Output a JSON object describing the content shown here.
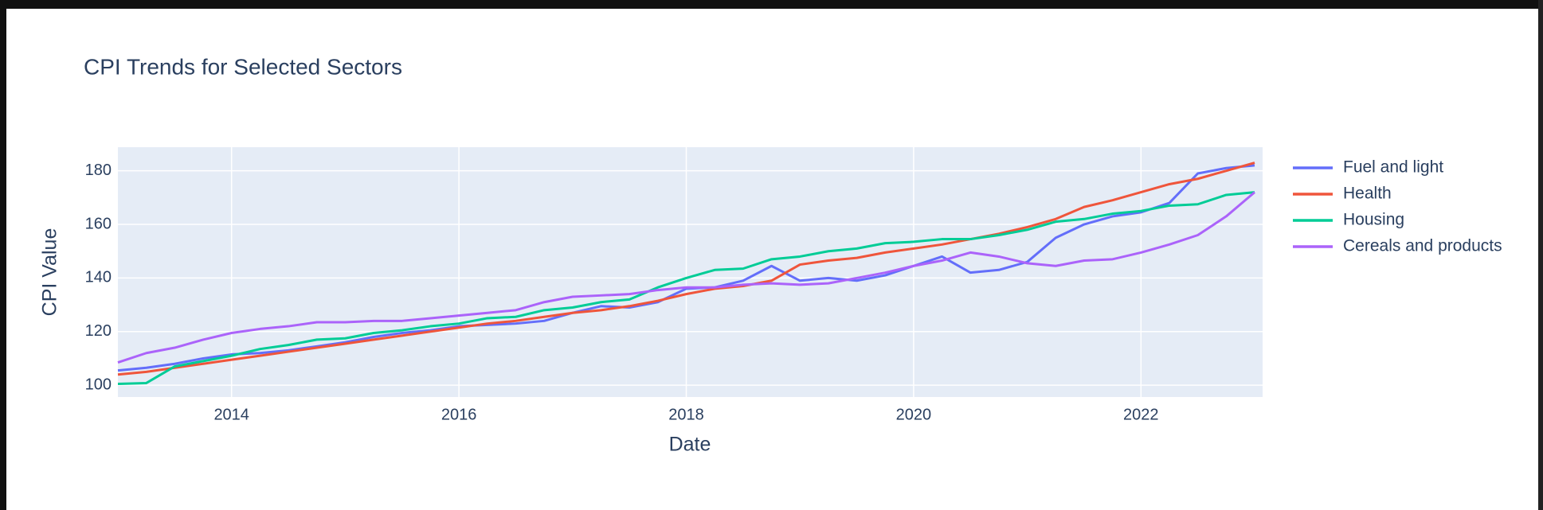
{
  "chart_data": {
    "type": "line",
    "title": "CPI Trends for Selected Sectors",
    "x_label": "Date",
    "y_label": "CPI Value",
    "xlim": [
      2013,
      2023.07
    ],
    "xticks": [
      2014,
      2016,
      2018,
      2020,
      2022
    ],
    "ylim": [
      95.6,
      188.8
    ],
    "yticks": [
      100,
      120,
      140,
      160,
      180
    ],
    "grid": true,
    "legend": "right",
    "x": [
      2013,
      2013.25,
      2013.5,
      2013.75,
      2014,
      2014.25,
      2014.5,
      2014.75,
      2015,
      2015.25,
      2015.5,
      2015.75,
      2016,
      2016.25,
      2016.5,
      2016.75,
      2017,
      2017.25,
      2017.5,
      2017.75,
      2018,
      2018.25,
      2018.5,
      2018.75,
      2019,
      2019.25,
      2019.5,
      2019.75,
      2020,
      2020.25,
      2020.5,
      2020.75,
      2021,
      2021.25,
      2021.5,
      2021.75,
      2022,
      2022.25,
      2022.5,
      2022.75,
      2023
    ],
    "series": [
      {
        "name": "Fuel and light",
        "color": "#636efa",
        "values": [
          105.5,
          106.5,
          108,
          110,
          111.5,
          112,
          113,
          114.5,
          116,
          118,
          119.5,
          120.5,
          122,
          122.5,
          123,
          124,
          127,
          129.5,
          129,
          131,
          136,
          136.5,
          139,
          144.5,
          139,
          140,
          139,
          141,
          144.5,
          148,
          142,
          143,
          146,
          155,
          160,
          163,
          164.5,
          168,
          179,
          181,
          182
        ]
      },
      {
        "name": "Health",
        "color": "#EF553B",
        "values": [
          104,
          105,
          106.5,
          108,
          109.5,
          111,
          112.5,
          114,
          115.5,
          117,
          118.5,
          120,
          121.5,
          123,
          124,
          125.5,
          127,
          128,
          129.5,
          131.5,
          134,
          136,
          137,
          139,
          145,
          146.5,
          147.5,
          149.5,
          151,
          152.5,
          154.5,
          156.5,
          159,
          162,
          166.5,
          169,
          172,
          175,
          177,
          180,
          183
        ]
      },
      {
        "name": "Housing",
        "color": "#00cc96",
        "values": [
          100.5,
          100.8,
          107,
          109,
          111,
          113.5,
          115,
          117,
          117.5,
          119.5,
          120.5,
          122,
          123,
          125,
          125.5,
          128,
          129,
          131,
          132,
          136.5,
          140,
          143,
          143.5,
          147,
          148,
          150,
          151,
          153,
          153.5,
          154.5,
          154.5,
          156,
          158,
          161,
          162,
          164,
          165,
          167,
          167.5,
          171,
          172
        ]
      },
      {
        "name": "Cereals and products",
        "color": "#ab63fa",
        "values": [
          108.5,
          112,
          114,
          117,
          119.5,
          121,
          122,
          123.5,
          123.5,
          124,
          124,
          125,
          126,
          127,
          128,
          131,
          133,
          133.5,
          134,
          135.5,
          136.5,
          136.5,
          137.5,
          138,
          137.5,
          138,
          140,
          142,
          144.5,
          146.5,
          149.5,
          148,
          145.5,
          144.5,
          146.5,
          147,
          149.5,
          152.5,
          156,
          163,
          172
        ]
      }
    ]
  }
}
